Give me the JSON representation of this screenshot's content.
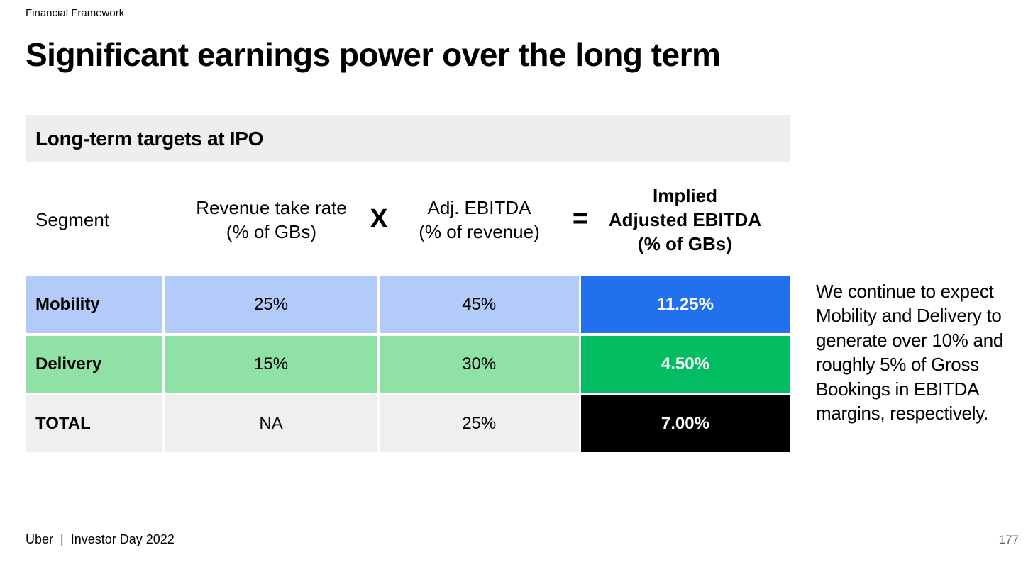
{
  "section_label": "Financial Framework",
  "title": "Significant earnings power over the long term",
  "table": {
    "header": "Long-term targets at IPO",
    "columns": {
      "segment": "Segment",
      "take_rate": [
        "Revenue take rate",
        "(% of GBs)"
      ],
      "ebitda": [
        "Adj. EBITDA",
        "(% of revenue)"
      ],
      "implied": [
        "Implied",
        "Adjusted EBITDA",
        "(% of GBs)"
      ]
    },
    "operators": {
      "times": "X",
      "equals": "="
    },
    "rows": [
      {
        "segment": "Mobility",
        "take_rate": "25%",
        "ebitda": "45%",
        "implied": "11.25%"
      },
      {
        "segment": "Delivery",
        "take_rate": "15%",
        "ebitda": "30%",
        "implied": "4.50%"
      },
      {
        "segment": "TOTAL",
        "take_rate": "NA",
        "ebitda": "25%",
        "implied": "7.00%"
      }
    ]
  },
  "colors": {
    "mobility_light": "#b3cbf8",
    "mobility_dark": "#2270ee",
    "delivery_light": "#90e1a6",
    "delivery_dark": "#02bd62",
    "total_light": "#efefef",
    "total_dark": "#000000",
    "header_bg": "#eeeeee"
  },
  "side_note": "We continue to expect Mobility and Delivery to generate over 10% and roughly 5% of Gross Bookings in EBITDA margins, respectively.",
  "footer": {
    "brand": "Uber",
    "separator": "|",
    "event": "Investor Day 2022"
  },
  "page_number": "177"
}
